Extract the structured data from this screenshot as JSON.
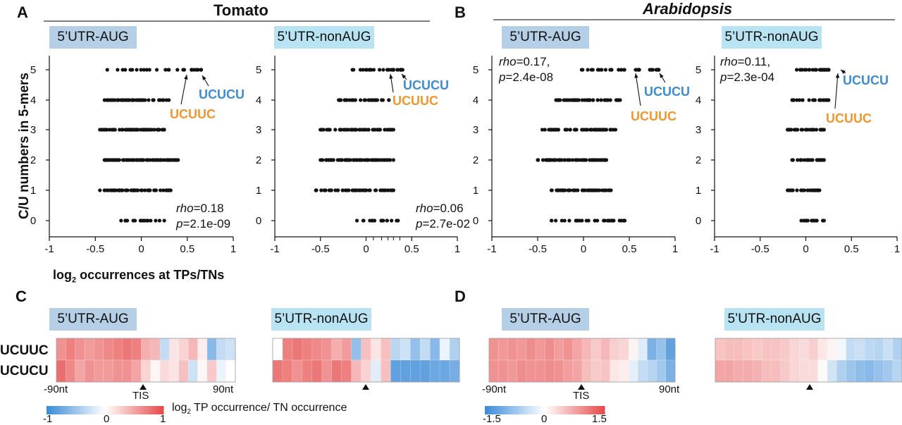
{
  "panel_letters": {
    "a": "A",
    "b": "B",
    "c": "C",
    "d": "D"
  },
  "titles": {
    "tomato": "Tomato",
    "arabidopsis": "Arabidopsis"
  },
  "subplot_labels": {
    "aug": "5’UTR-AUG",
    "nonaug": "5’UTR-nonAUG"
  },
  "ylabel": "C/U numbers in 5-mers",
  "xlabel_main": "log",
  "xlabel_sub": "2",
  "xlabel_rest": " occurrences at TPs/TNs",
  "annotations": {
    "ucucu": "UCUCU",
    "ucuuc": "UCUUC"
  },
  "stats": {
    "tomato_aug": {
      "rho_label": "rho",
      "rho": "=0.18",
      "p_label": "p",
      "p": "=2.1e-09"
    },
    "tomato_nonaug": {
      "rho_label": "rho",
      "rho": "=0.06",
      "p_label": "p",
      "p": "=2.7e-02"
    },
    "arab_aug": {
      "rho_label": "rho",
      "rho": "=0.17,",
      "p_label": "p",
      "p": "=2.4e-08"
    },
    "arab_nonaug": {
      "rho_label": "rho",
      "rho": "=0.11,",
      "p_label": "p",
      "p": "=2.3e-04"
    }
  },
  "heatmap_rows": [
    "UCUUC",
    "UCUCU"
  ],
  "heatmap_axis": {
    "left": "-90nt",
    "right": "90nt",
    "tis": "TIS"
  },
  "colorbar_c": {
    "min": "-1",
    "mid": "0",
    "max": "1",
    "label_main": "log",
    "label_sub": "2",
    "label_rest": " TP occurrence/ TN occurrence"
  },
  "colorbar_d": {
    "min": "-1.5",
    "mid": "0",
    "max": "1.5"
  },
  "colors": {
    "aug_box": "#b5cfe6",
    "nonaug_box": "#b8e3f3",
    "ucucu": "#3d8ccf",
    "ucuuc": "#f0962e",
    "red": "#e64a4a",
    "blue": "#3a8ad8"
  },
  "chart_data": [
    {
      "type": "scatter",
      "name": "Tomato 5’UTR-AUG",
      "xlim": [
        -1,
        1
      ],
      "ylim": [
        0,
        5
      ],
      "x_ticks": [
        -1,
        -0.5,
        0,
        0.5,
        1
      ],
      "y_ticks": [
        0,
        1,
        2,
        3,
        4,
        5
      ],
      "ranges": [
        [
          -0.22,
          0.25
        ],
        [
          -0.45,
          0.32
        ],
        [
          -0.4,
          0.4
        ],
        [
          -0.45,
          0.25
        ],
        [
          -0.4,
          0.3
        ],
        [
          -0.37,
          0.65
        ]
      ],
      "counts": [
        14,
        60,
        70,
        60,
        45,
        22
      ],
      "highlights": [
        {
          "label": "UCUUC",
          "x": 0.55,
          "y": 5
        },
        {
          "label": "UCUCU",
          "x": 0.65,
          "y": 5
        }
      ]
    },
    {
      "type": "scatter",
      "name": "Tomato 5’UTR-nonAUG",
      "xlim": [
        -1,
        1
      ],
      "ylim": [
        0,
        5
      ],
      "x_ticks": [
        -1,
        -0.5,
        0,
        0.5,
        1
      ],
      "y_ticks": [
        0,
        1,
        2,
        3,
        4,
        5
      ],
      "ranges": [
        [
          -0.1,
          0.35
        ],
        [
          -0.55,
          0.3
        ],
        [
          -0.5,
          0.3
        ],
        [
          -0.5,
          0.3
        ],
        [
          -0.3,
          0.25
        ],
        [
          -0.15,
          0.4
        ]
      ],
      "counts": [
        14,
        55,
        60,
        50,
        30,
        22
      ],
      "highlights": [
        {
          "label": "UCUUC",
          "x": 0.3,
          "y": 5
        },
        {
          "label": "UCUCU",
          "x": 0.38,
          "y": 5
        }
      ]
    },
    {
      "type": "scatter",
      "name": "Arabidopsis 5’UTR-AUG",
      "xlim": [
        -1,
        1
      ],
      "ylim": [
        0,
        5
      ],
      "x_ticks": [
        -1,
        -0.5,
        0,
        0.5,
        1
      ],
      "y_ticks": [
        0,
        1,
        2,
        3,
        4,
        5
      ],
      "ranges": [
        [
          -0.35,
          0.45
        ],
        [
          -0.35,
          0.3
        ],
        [
          -0.5,
          0.25
        ],
        [
          -0.45,
          0.35
        ],
        [
          -0.3,
          0.4
        ],
        [
          -0.02,
          0.82
        ]
      ],
      "counts": [
        30,
        50,
        55,
        60,
        45,
        30
      ],
      "highlights": [
        {
          "label": "UCUUC",
          "x": 0.6,
          "y": 5
        },
        {
          "label": "UCUCU",
          "x": 0.82,
          "y": 5
        }
      ]
    },
    {
      "type": "scatter",
      "name": "Arabidopsis 5’UTR-nonAUG",
      "xlim": [
        -1,
        1
      ],
      "ylim": [
        0,
        5
      ],
      "x_ticks": [
        -1,
        -0.5,
        0,
        0.5,
        1
      ],
      "y_ticks": [
        0,
        1,
        2,
        3,
        4,
        5
      ],
      "ranges": [
        [
          -0.05,
          0.2
        ],
        [
          -0.2,
          0.15
        ],
        [
          -0.15,
          0.2
        ],
        [
          -0.2,
          0.2
        ],
        [
          -0.15,
          0.25
        ],
        [
          -0.1,
          0.25
        ]
      ],
      "counts": [
        12,
        20,
        24,
        26,
        20,
        22
      ],
      "highlights": [
        {
          "label": "UCUUC",
          "x": 0.2,
          "y": 5
        },
        {
          "label": "UCUCU",
          "x": 0.25,
          "y": 5
        }
      ]
    },
    {
      "type": "heatmap",
      "name": "C 5’UTR-AUG",
      "rows": [
        "UCUUC",
        "UCUCU"
      ],
      "vmin": -1,
      "vmax": 1,
      "values": [
        [
          0.6,
          0.7,
          0.6,
          0.55,
          0.6,
          0.65,
          0.7,
          0.75,
          0.7,
          0.45,
          0.4,
          -0.3,
          0.15,
          0.25,
          0.4,
          0.1,
          -0.6,
          -0.3,
          -0.25
        ],
        [
          0.8,
          0.65,
          0.5,
          0.6,
          0.55,
          0.55,
          0.6,
          0.6,
          0.5,
          0.25,
          0.05,
          0.2,
          0.15,
          0.35,
          -0.25,
          0.05,
          0.3,
          -0.1,
          0.0
        ]
      ]
    },
    {
      "type": "heatmap",
      "name": "C 5’UTR-nonAUG",
      "rows": [
        "UCUUC",
        "UCUCU"
      ],
      "vmin": -1,
      "vmax": 1,
      "values": [
        [
          0.0,
          0.7,
          0.75,
          0.7,
          0.65,
          0.6,
          0.45,
          0.55,
          -0.55,
          0.35,
          0.15,
          0.35,
          -0.35,
          -0.25,
          -0.55,
          -0.3,
          -0.6,
          -0.1,
          -0.4
        ],
        [
          0.75,
          0.7,
          0.6,
          0.7,
          0.75,
          0.6,
          0.75,
          0.7,
          0.4,
          0.25,
          -0.15,
          0.35,
          -0.8,
          -0.8,
          -0.8,
          -0.8,
          -0.75,
          -0.75,
          -0.7
        ]
      ]
    },
    {
      "type": "heatmap",
      "name": "D 5’UTR-AUG",
      "rows": [
        "UCUUC",
        "UCUCU"
      ],
      "vmin": -1.5,
      "vmax": 1.5,
      "values": [
        [
          0.9,
          0.85,
          0.9,
          0.85,
          0.95,
          0.85,
          0.95,
          0.8,
          0.9,
          0.75,
          0.6,
          0.45,
          0.6,
          0.4,
          0.35,
          0.1,
          -0.25,
          -1.0,
          -0.8,
          -1.2
        ],
        [
          0.9,
          0.9,
          0.85,
          0.95,
          0.9,
          0.9,
          0.95,
          0.9,
          0.8,
          0.75,
          0.55,
          0.45,
          0.5,
          0.2,
          0.15,
          -0.2,
          -0.45,
          -0.55,
          -0.7,
          -1.0
        ]
      ]
    },
    {
      "type": "heatmap",
      "name": "D 5’UTR-nonAUG",
      "rows": [
        "UCUUC",
        "UCUCU"
      ],
      "vmin": -1.5,
      "vmax": 1.5,
      "values": [
        [
          0.5,
          0.55,
          0.55,
          0.5,
          0.45,
          0.5,
          0.5,
          0.45,
          0.35,
          0.3,
          0.4,
          0.2,
          0.1,
          -0.1,
          -0.45,
          -0.4,
          -0.5,
          -0.55,
          -0.4,
          -0.6
        ],
        [
          0.75,
          0.75,
          0.7,
          0.7,
          0.65,
          0.55,
          0.55,
          0.45,
          0.35,
          0.3,
          0.3,
          0.05,
          -0.35,
          -0.6,
          -0.75,
          -0.85,
          -0.9,
          -0.8,
          -0.7,
          -0.55
        ]
      ]
    }
  ]
}
